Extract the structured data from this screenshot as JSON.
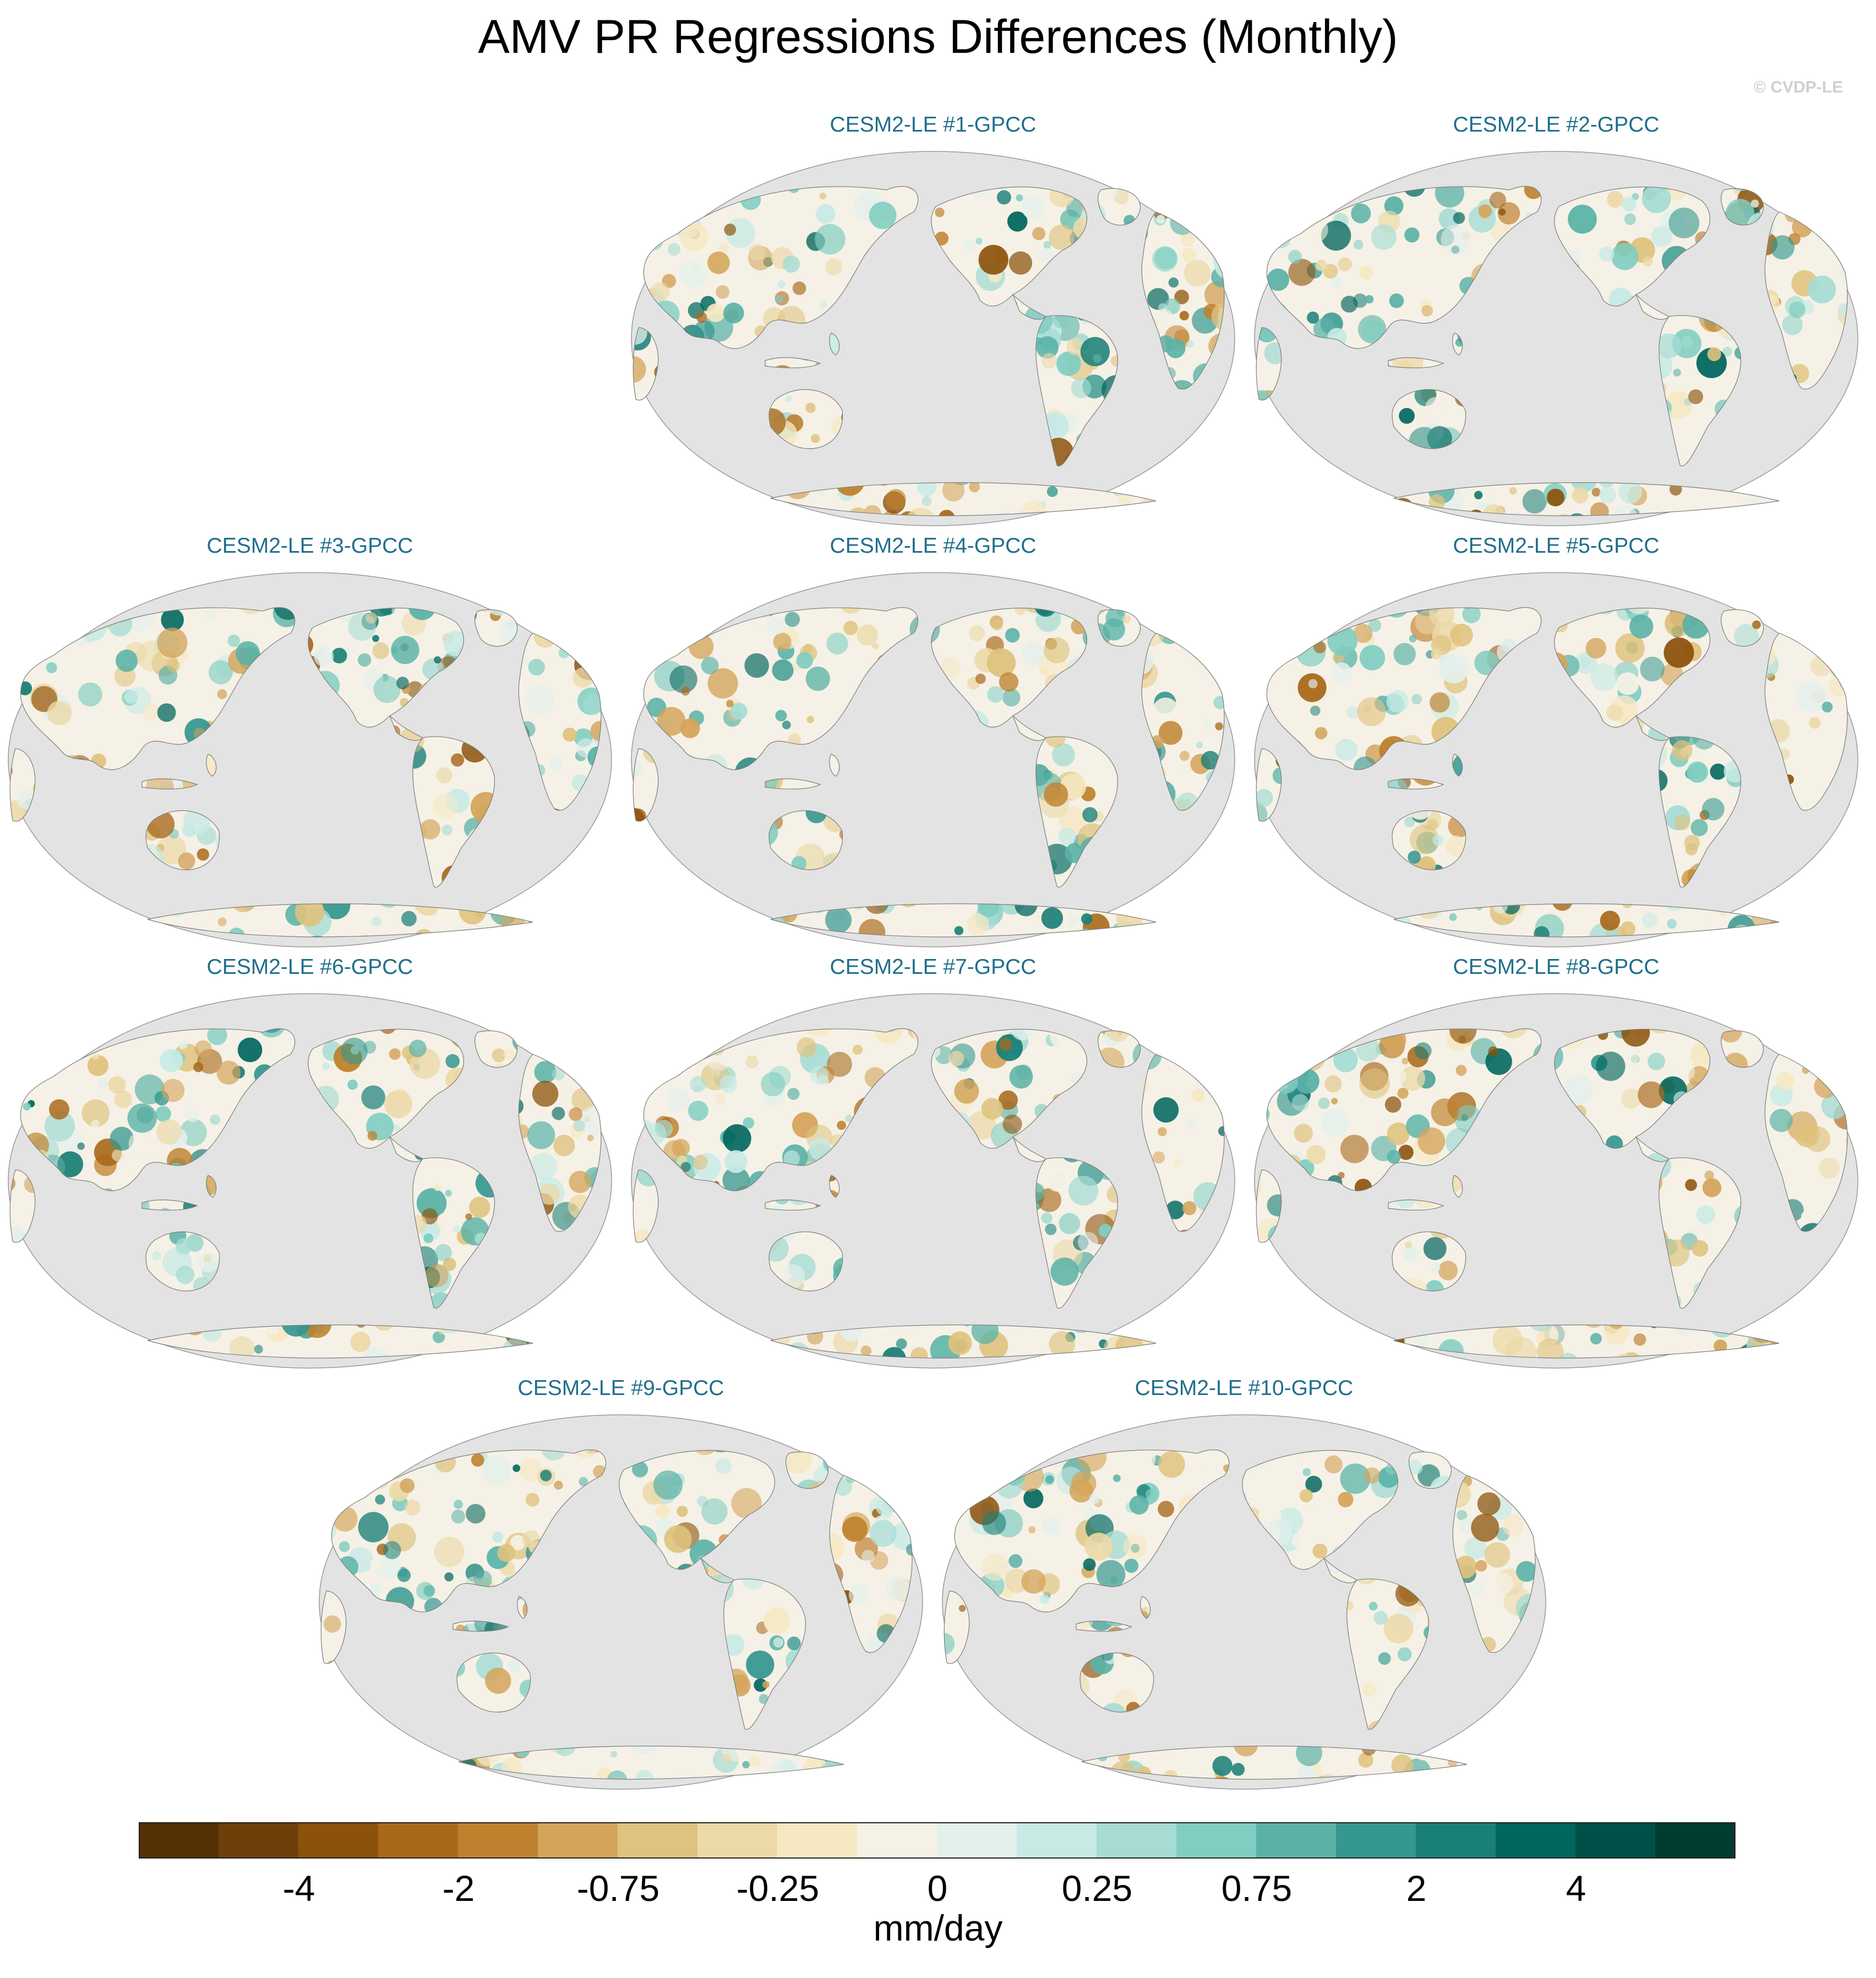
{
  "title": "AMV PR Regressions Differences (Monthly)",
  "credit": "© CVDP-LE",
  "panels": [
    {
      "label": "CESM2-LE #1-GPCC"
    },
    {
      "label": "CESM2-LE #2-GPCC"
    },
    {
      "label": "CESM2-LE #3-GPCC"
    },
    {
      "label": "CESM2-LE #4-GPCC"
    },
    {
      "label": "CESM2-LE #5-GPCC"
    },
    {
      "label": "CESM2-LE #6-GPCC"
    },
    {
      "label": "CESM2-LE #7-GPCC"
    },
    {
      "label": "CESM2-LE #8-GPCC"
    },
    {
      "label": "CESM2-LE #9-GPCC"
    },
    {
      "label": "CESM2-LE #10-GPCC"
    }
  ],
  "colors": {
    "ocean": "#e3e3e3",
    "coast": "#7d7d7d",
    "palette": [
      "#543005",
      "#6f3f09",
      "#8c510a",
      "#a9691b",
      "#bf812d",
      "#d4a45a",
      "#dfc27d",
      "#ecd9a8",
      "#f6e8c3",
      "#f5f1e6",
      "#e4f0ec",
      "#c7eae5",
      "#a6dcd4",
      "#80cdc1",
      "#5ab2a7",
      "#35978f",
      "#1a7f77",
      "#01665e",
      "#00504a",
      "#003c30"
    ]
  },
  "colorbar": {
    "ticks": [
      "-4",
      "-2",
      "-0.75",
      "-0.25",
      "0",
      "0.25",
      "0.75",
      "2",
      "4"
    ],
    "units": "mm/day"
  }
}
